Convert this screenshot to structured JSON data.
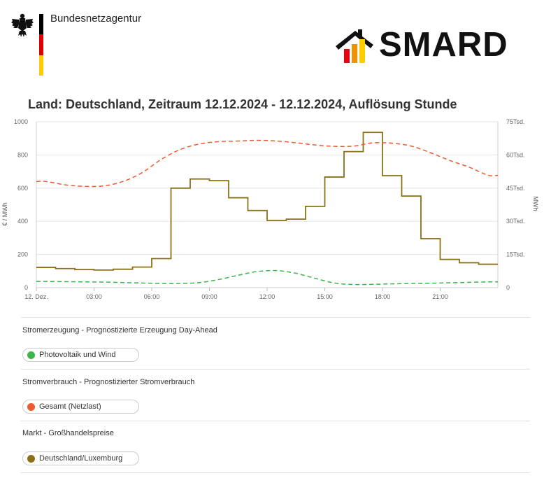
{
  "header": {
    "org_name": "Bundesnetzagentur",
    "brand_name": "SMARD",
    "eagle_icon": "federal-eagle-icon",
    "flag_colors": [
      "#000000",
      "#dd0000",
      "#ffcc00"
    ]
  },
  "chart_data": {
    "type": "line",
    "title": "Land: Deutschland, Zeitraum 12.12.2024 - 12.12.2024, Auflösung Stunde",
    "ylabel_left": "€ / MWh",
    "ylabel_right": "MWh",
    "ylim_left": [
      0,
      1000
    ],
    "ylim_right": [
      0,
      75000
    ],
    "yticks_left": [
      "0",
      "200",
      "400",
      "600",
      "800",
      "1000"
    ],
    "yticks_right": [
      "0",
      "15Tsd.",
      "30Tsd.",
      "45Tsd.",
      "60Tsd.",
      "75Tsd."
    ],
    "x_hours": [
      0,
      1,
      2,
      3,
      4,
      5,
      6,
      7,
      8,
      9,
      10,
      11,
      12,
      13,
      14,
      15,
      16,
      17,
      18,
      19,
      20,
      21,
      22,
      23
    ],
    "xticks": [
      {
        "hour": 0,
        "label": "12. Dez."
      },
      {
        "hour": 3,
        "label": "03:00"
      },
      {
        "hour": 6,
        "label": "06:00"
      },
      {
        "hour": 9,
        "label": "09:00"
      },
      {
        "hour": 12,
        "label": "12:00"
      },
      {
        "hour": 15,
        "label": "15:00"
      },
      {
        "hour": 18,
        "label": "18:00"
      },
      {
        "hour": 21,
        "label": "21:00"
      }
    ],
    "series": [
      {
        "name": "Deutschland/Luxemburg",
        "axis": "left",
        "style": "step",
        "color": "#8a7116",
        "values": [
          122,
          115,
          109,
          106,
          111,
          124,
          175,
          600,
          655,
          645,
          542,
          465,
          405,
          413,
          490,
          667,
          820,
          936,
          675,
          552,
          295,
          170,
          150,
          141
        ]
      },
      {
        "name": "Gesamt (Netzlast)",
        "axis": "right",
        "style": "dashed",
        "color": "#f05a30",
        "values": [
          48000,
          46500,
          45800,
          46000,
          48000,
          52000,
          58000,
          62500,
          65000,
          66000,
          66300,
          66600,
          66300,
          65500,
          64500,
          63900,
          64000,
          65500,
          65300,
          64000,
          61000,
          57500,
          54500,
          50800
        ]
      },
      {
        "name": "Photovoltaik und Wind",
        "axis": "right",
        "style": "dashed",
        "color": "#3cb54a",
        "values": [
          2800,
          2700,
          2600,
          2500,
          2300,
          2100,
          1900,
          1900,
          2300,
          3700,
          5600,
          7300,
          7700,
          6500,
          4200,
          2100,
          1400,
          1500,
          1700,
          1900,
          2000,
          2200,
          2400,
          2600
        ]
      }
    ]
  },
  "legend": {
    "sections": [
      {
        "title": "Stromerzeugung - Prognostizierte Erzeugung Day-Ahead",
        "item": "Photovoltaik und Wind",
        "color": "#3cb54a"
      },
      {
        "title": "Stromverbrauch - Prognostizierter Stromverbrauch",
        "item": "Gesamt (Netzlast)",
        "color": "#f05a30"
      },
      {
        "title": "Markt - Großhandelspreise",
        "item": "Deutschland/Luxemburg",
        "color": "#8a7116"
      }
    ]
  }
}
